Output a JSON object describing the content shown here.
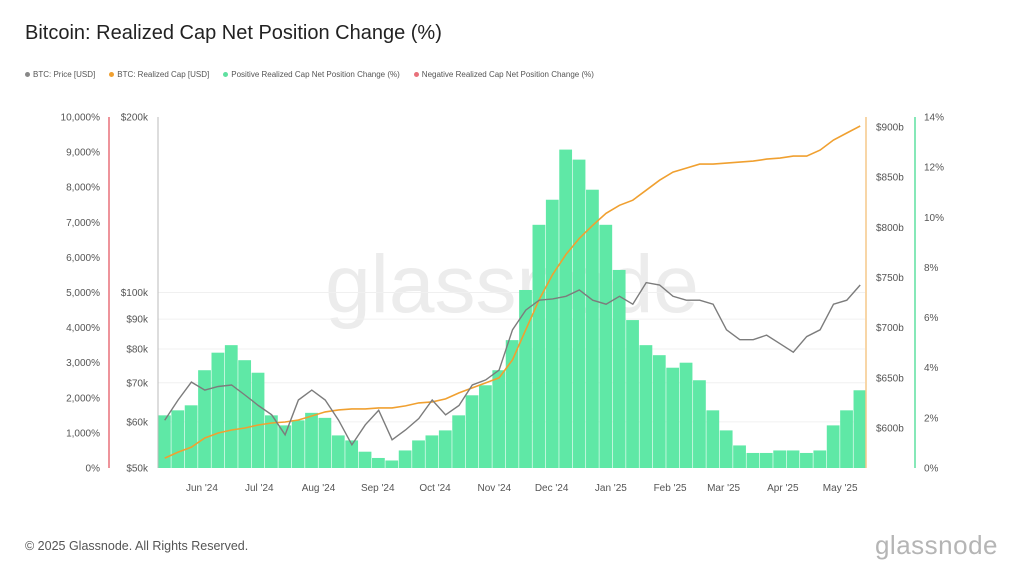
{
  "title": "Bitcoin: Realized Cap Net Position Change (%)",
  "footer": "© 2025 Glassnode. All Rights Reserved.",
  "logo": "glassnode",
  "watermark": "glassnode",
  "legend": [
    {
      "label": "BTC: Price [USD]",
      "color": "#888888"
    },
    {
      "label": "BTC: Realized Cap [USD]",
      "color": "#f0a030"
    },
    {
      "label": "Positive Realized Cap Net Position Change (%)",
      "color": "#5fe0a0"
    },
    {
      "label": "Negative Realized Cap Net Position Change (%)",
      "color": "#e8707a"
    }
  ],
  "chart_data": {
    "type": "bar+line",
    "title": "Bitcoin: Realized Cap Net Position Change (%)",
    "x_start": "2024-05-09",
    "x_end": "2025-05-14",
    "x_step_days": 7,
    "x_ticks": [
      "Jun '24",
      "Jul '24",
      "Aug '24",
      "Sep '24",
      "Oct '24",
      "Nov '24",
      "Dec '24",
      "Jan '25",
      "Feb '25",
      "Mar '25",
      "Apr '25",
      "May '25"
    ],
    "x_tick_dates": [
      "2024-06-01",
      "2024-07-01",
      "2024-08-01",
      "2024-09-01",
      "2024-10-01",
      "2024-11-01",
      "2024-12-01",
      "2025-01-01",
      "2025-02-01",
      "2025-03-01",
      "2025-04-01",
      "2025-05-01"
    ],
    "axes": {
      "negative_pct": {
        "position": "left-outer",
        "ticks": [
          "0%",
          "1,000%",
          "2,000%",
          "3,000%",
          "4,000%",
          "5,000%",
          "6,000%",
          "7,000%",
          "8,000%",
          "9,000%",
          "10,000%"
        ],
        "range": [
          0,
          10000
        ],
        "color": "#e8707a"
      },
      "price": {
        "position": "left-inner",
        "scale": "log",
        "range": [
          50000,
          200000
        ],
        "ticks": [
          "$50k",
          "$60k",
          "$70k",
          "$80k",
          "$90k",
          "$100k",
          "$200k"
        ],
        "tick_values": [
          50000,
          60000,
          70000,
          80000,
          90000,
          100000,
          200000
        ]
      },
      "realized_cap": {
        "position": "right-inner",
        "range_billion": [
          560,
          910
        ],
        "ticks": [
          "$600b",
          "$650b",
          "$700b",
          "$750b",
          "$800b",
          "$850b",
          "$900b"
        ],
        "tick_values": [
          600,
          650,
          700,
          750,
          800,
          850,
          900
        ],
        "color": "#f0a030"
      },
      "positive_pct": {
        "position": "right-outer",
        "range": [
          0,
          14
        ],
        "ticks": [
          "0%",
          "2%",
          "4%",
          "6%",
          "8%",
          "10%",
          "12%",
          "14%"
        ],
        "tick_values": [
          0,
          2,
          4,
          6,
          8,
          10,
          12,
          14
        ],
        "color": "#5fe0a0"
      }
    },
    "series": [
      {
        "name": "Positive Realized Cap Net Position Change (%)",
        "type": "bar",
        "axis": "positive_pct",
        "values": [
          2.1,
          2.3,
          2.5,
          3.9,
          4.6,
          4.9,
          4.3,
          3.8,
          2.1,
          1.7,
          1.9,
          2.2,
          2.0,
          1.3,
          1.1,
          0.65,
          0.4,
          0.3,
          0.7,
          1.1,
          1.3,
          1.5,
          2.1,
          2.9,
          3.3,
          3.9,
          5.1,
          7.1,
          9.7,
          10.7,
          12.7,
          12.3,
          11.1,
          9.7,
          7.9,
          5.9,
          4.9,
          4.5,
          4.0,
          4.2,
          3.5,
          2.3,
          1.5,
          0.9,
          0.6,
          0.6,
          0.7,
          0.7,
          0.6,
          0.7,
          1.7,
          2.3,
          3.1
        ]
      },
      {
        "name": "BTC: Price [USD]",
        "type": "line",
        "axis": "price",
        "values": [
          60400,
          65400,
          70200,
          68000,
          69000,
          69400,
          66700,
          64000,
          61700,
          57000,
          65400,
          68000,
          65400,
          60400,
          54800,
          59300,
          62800,
          55900,
          58100,
          60800,
          65400,
          61700,
          64000,
          69400,
          70800,
          73600,
          86300,
          93300,
          97000,
          97500,
          98500,
          101000,
          97000,
          95500,
          98500,
          95500,
          104000,
          103000,
          98500,
          97000,
          97000,
          95500,
          86300,
          83000,
          83000,
          84500,
          81700,
          79000,
          84000,
          86300,
          95500,
          97000,
          103000
        ]
      },
      {
        "name": "BTC: Realized Cap [USD]",
        "type": "line",
        "axis": "realized_cap",
        "unit": "billion USD",
        "values": [
          570,
          576,
          581,
          590,
          595,
          598,
          600,
          603,
          605,
          606,
          608,
          612,
          616,
          618,
          619,
          619,
          620,
          620,
          622,
          625,
          626,
          629,
          635,
          640,
          645,
          650,
          668,
          698,
          728,
          753,
          773,
          789,
          802,
          814,
          822,
          827,
          837,
          847,
          855,
          859,
          863,
          863,
          864,
          865,
          866,
          868,
          869,
          871,
          871,
          877,
          887,
          894,
          901
        ]
      }
    ],
    "grid": true,
    "legend_position": "top-left"
  }
}
